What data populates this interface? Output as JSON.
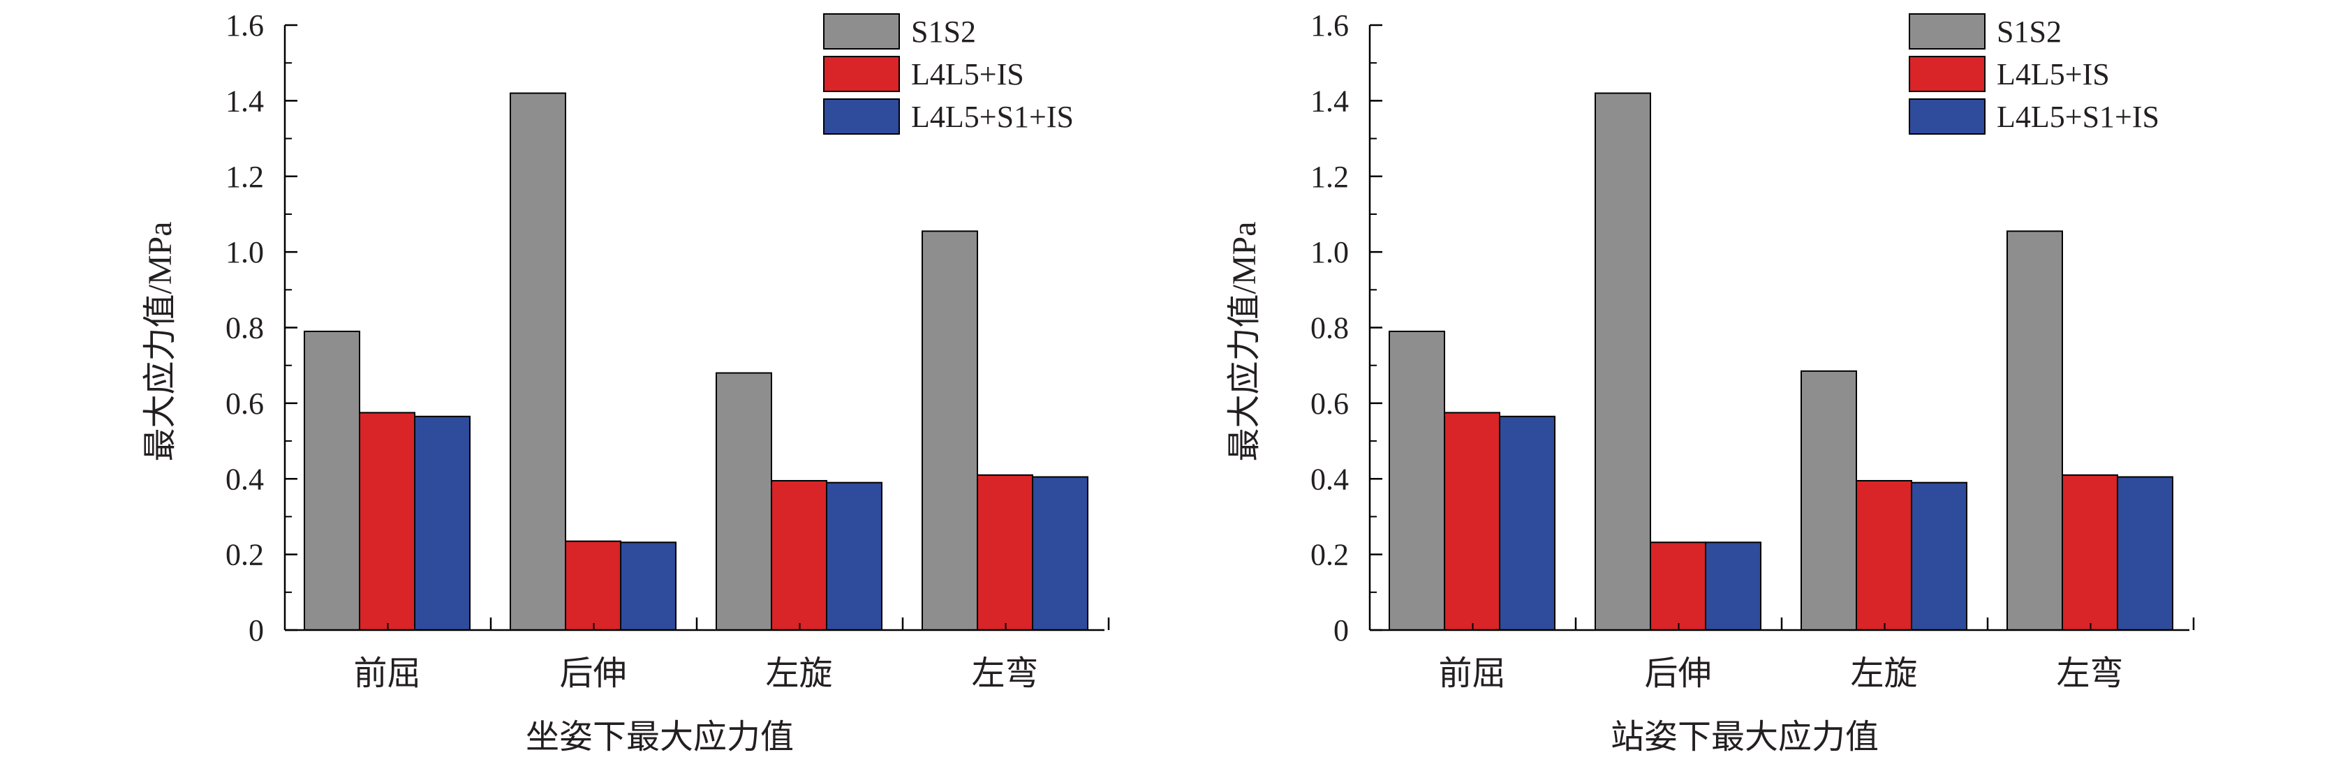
{
  "chart_data": [
    {
      "type": "bar",
      "title": "坐姿下最大应力值",
      "ylabel": "最大应力值/MPa",
      "xlabel": "",
      "categories": [
        "前屈",
        "后伸",
        "左旋",
        "左弯"
      ],
      "series": [
        {
          "name": "S1S2",
          "color": "#8f8e8f",
          "values": [
            0.79,
            1.42,
            0.68,
            1.055
          ]
        },
        {
          "name": "L4L5+IS",
          "color": "#d92428",
          "values": [
            0.575,
            0.235,
            0.395,
            0.41
          ]
        },
        {
          "name": "L4L5+S1+IS",
          "color": "#2e4b9c",
          "values": [
            0.565,
            0.232,
            0.39,
            0.405
          ]
        }
      ],
      "ylim": [
        0,
        1.6
      ],
      "yticks": [
        "0",
        "0.2",
        "0.4",
        "0.6",
        "0.8",
        "1.0",
        "1.2",
        "1.4",
        "1.6"
      ],
      "grid": false,
      "legend_position": "top-right"
    },
    {
      "type": "bar",
      "title": "站姿下最大应力值",
      "ylabel": "最大应力值/MPa",
      "xlabel": "",
      "categories": [
        "前屈",
        "后伸",
        "左旋",
        "左弯"
      ],
      "series": [
        {
          "name": "S1S2",
          "color": "#8f8e8f",
          "values": [
            0.79,
            1.42,
            0.685,
            1.055
          ]
        },
        {
          "name": "L4L5+IS",
          "color": "#d92428",
          "values": [
            0.575,
            0.232,
            0.395,
            0.41
          ]
        },
        {
          "name": "L4L5+S1+IS",
          "color": "#2e4b9c",
          "values": [
            0.565,
            0.232,
            0.39,
            0.405
          ]
        }
      ],
      "ylim": [
        0,
        1.6
      ],
      "yticks": [
        "0",
        "0.2",
        "0.4",
        "0.6",
        "0.8",
        "1.0",
        "1.2",
        "1.4",
        "1.6"
      ],
      "grid": false,
      "legend_position": "top-right"
    }
  ]
}
